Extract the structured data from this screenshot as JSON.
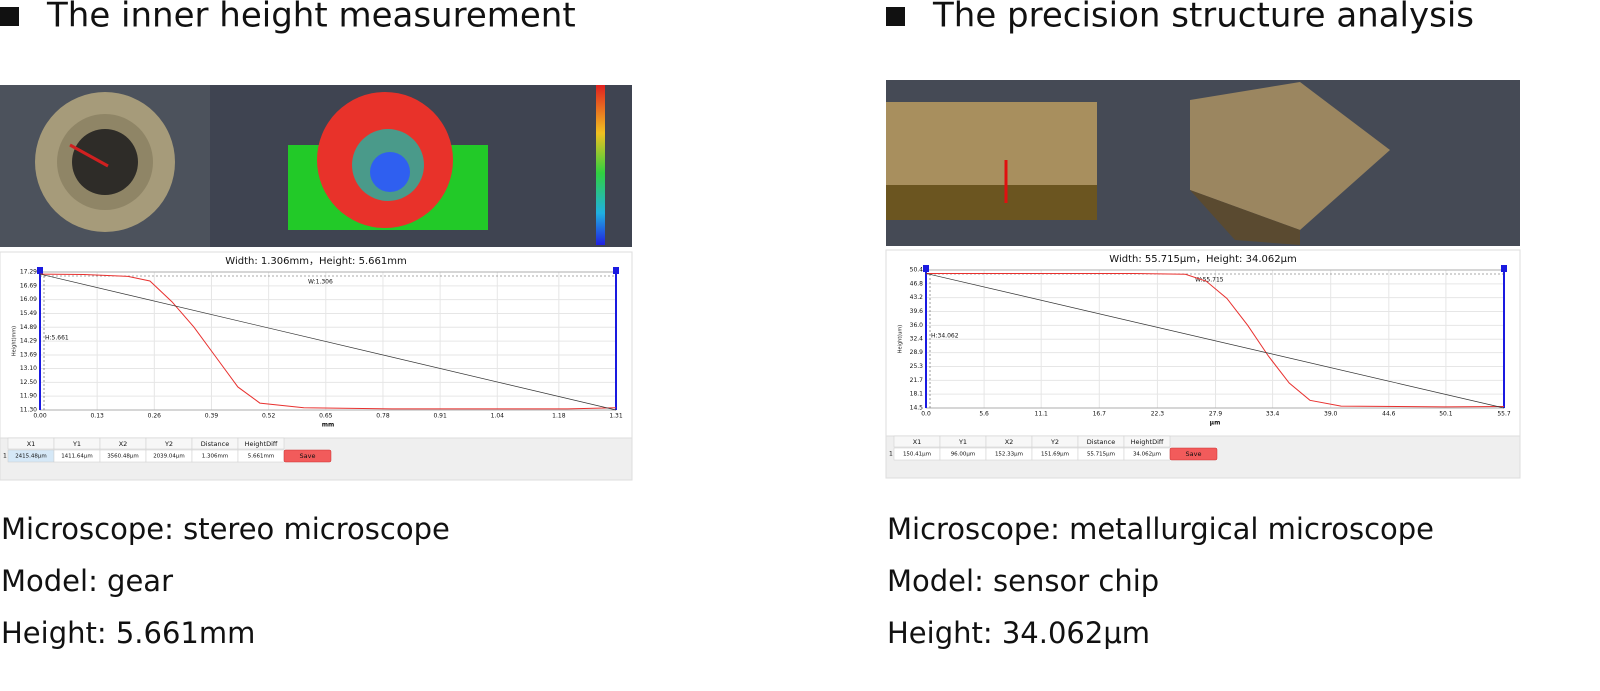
{
  "panels": [
    {
      "heading": "The inner height measurement",
      "chart": {
        "type": "line",
        "title": "Width: 1.306mm，Height: 5.661mm",
        "xlabel": "mm",
        "ylabel": "Height(mm)",
        "annotations": [
          "W:1.306",
          "H:5.661"
        ],
        "xlim": [
          0,
          1.31
        ],
        "ylim": [
          11.3,
          17.29
        ],
        "xticks": [
          {
            "value": 0,
            "label": "0.00"
          },
          0.13,
          0.26,
          0.39,
          0.52,
          0.65,
          0.78,
          0.91,
          1.04,
          1.18,
          1.31
        ],
        "yticks": [
          {
            "value": 11.3,
            "label": "11.30"
          },
          {
            "value": 11.9,
            "label": "11.90"
          },
          {
            "value": 12.5,
            "label": "12.50"
          },
          {
            "value": 13.1,
            "label": "13.10"
          },
          13.69,
          14.29,
          14.89,
          15.49,
          16.09,
          16.69,
          17.29
        ],
        "grid": true,
        "series": [
          {
            "color": "#e8312f",
            "x": [
              0,
              0.1,
              0.2,
              0.25,
              0.3,
              0.35,
              0.4,
              0.45,
              0.5,
              0.6,
              0.8,
              1.0,
              1.2,
              1.31
            ],
            "y": [
              17.2,
              17.18,
              17.1,
              16.9,
              16.0,
              14.9,
              13.6,
              12.3,
              11.6,
              11.4,
              11.35,
              11.35,
              11.35,
              11.4
            ]
          },
          {
            "color": "#333333",
            "x": [
              0,
              1.31
            ],
            "y": [
              17.2,
              11.3
            ]
          }
        ]
      },
      "table": {
        "headers": [
          "X1",
          "Y1",
          "X2",
          "Y2",
          "Distance",
          "HeightDiff"
        ],
        "rows": [
          {
            "index": "1",
            "cells": [
              "2415.48µm",
              "1411.64µm",
              "3560.48µm",
              "2039.04µm",
              "1.306mm",
              "5.661mm"
            ]
          }
        ]
      },
      "button": "Save",
      "captions": [
        "Microscope: stereo microscope",
        "Model: gear",
        "Height: 5.661mm"
      ]
    },
    {
      "heading": "The precision structure analysis",
      "chart": {
        "type": "line",
        "title": "Width: 55.715μm，Height: 34.062μm",
        "xlabel": "μm",
        "ylabel": "Height(um)",
        "annotations": [
          "W:55.715",
          "H:34.062"
        ],
        "xlim": [
          0,
          55.7
        ],
        "ylim": [
          14.5,
          50.4
        ],
        "xticks": [
          {
            "value": 0,
            "label": "0.0"
          },
          5.6,
          11.1,
          16.7,
          22.3,
          27.9,
          33.4,
          {
            "value": 39,
            "label": "39.0"
          },
          44.6,
          50.1,
          55.7
        ],
        "yticks": [
          14.5,
          18.1,
          21.7,
          25.3,
          28.9,
          32.4,
          {
            "value": 36,
            "label": "36.0"
          },
          39.6,
          43.2,
          46.8,
          50.4
        ],
        "grid": true,
        "series": [
          {
            "color": "#e8312f",
            "x": [
              0,
              10,
              20,
              25,
              27,
              29,
              31,
              33,
              35,
              37,
              40,
              50,
              55.7
            ],
            "y": [
              49.5,
              49.5,
              49.5,
              49.3,
              47.5,
              43,
              36,
              28,
              21,
              16.5,
              15,
              14.8,
              14.9
            ]
          },
          {
            "color": "#333333",
            "x": [
              0,
              55.7
            ],
            "y": [
              49.5,
              14.5
            ]
          }
        ]
      },
      "table": {
        "headers": [
          "X1",
          "Y1",
          "X2",
          "Y2",
          "Distance",
          "HeightDiff"
        ],
        "rows": [
          {
            "index": "1",
            "cells": [
              "150.41µm",
              "96.00µm",
              "152.33µm",
              "151.69µm",
              "55.715µm",
              "34.062µm"
            ]
          }
        ]
      },
      "button": "Save",
      "captions": [
        "Microscope: metallurgical microscope",
        "Model: sensor chip",
        "Height: 34.062μm"
      ]
    }
  ]
}
